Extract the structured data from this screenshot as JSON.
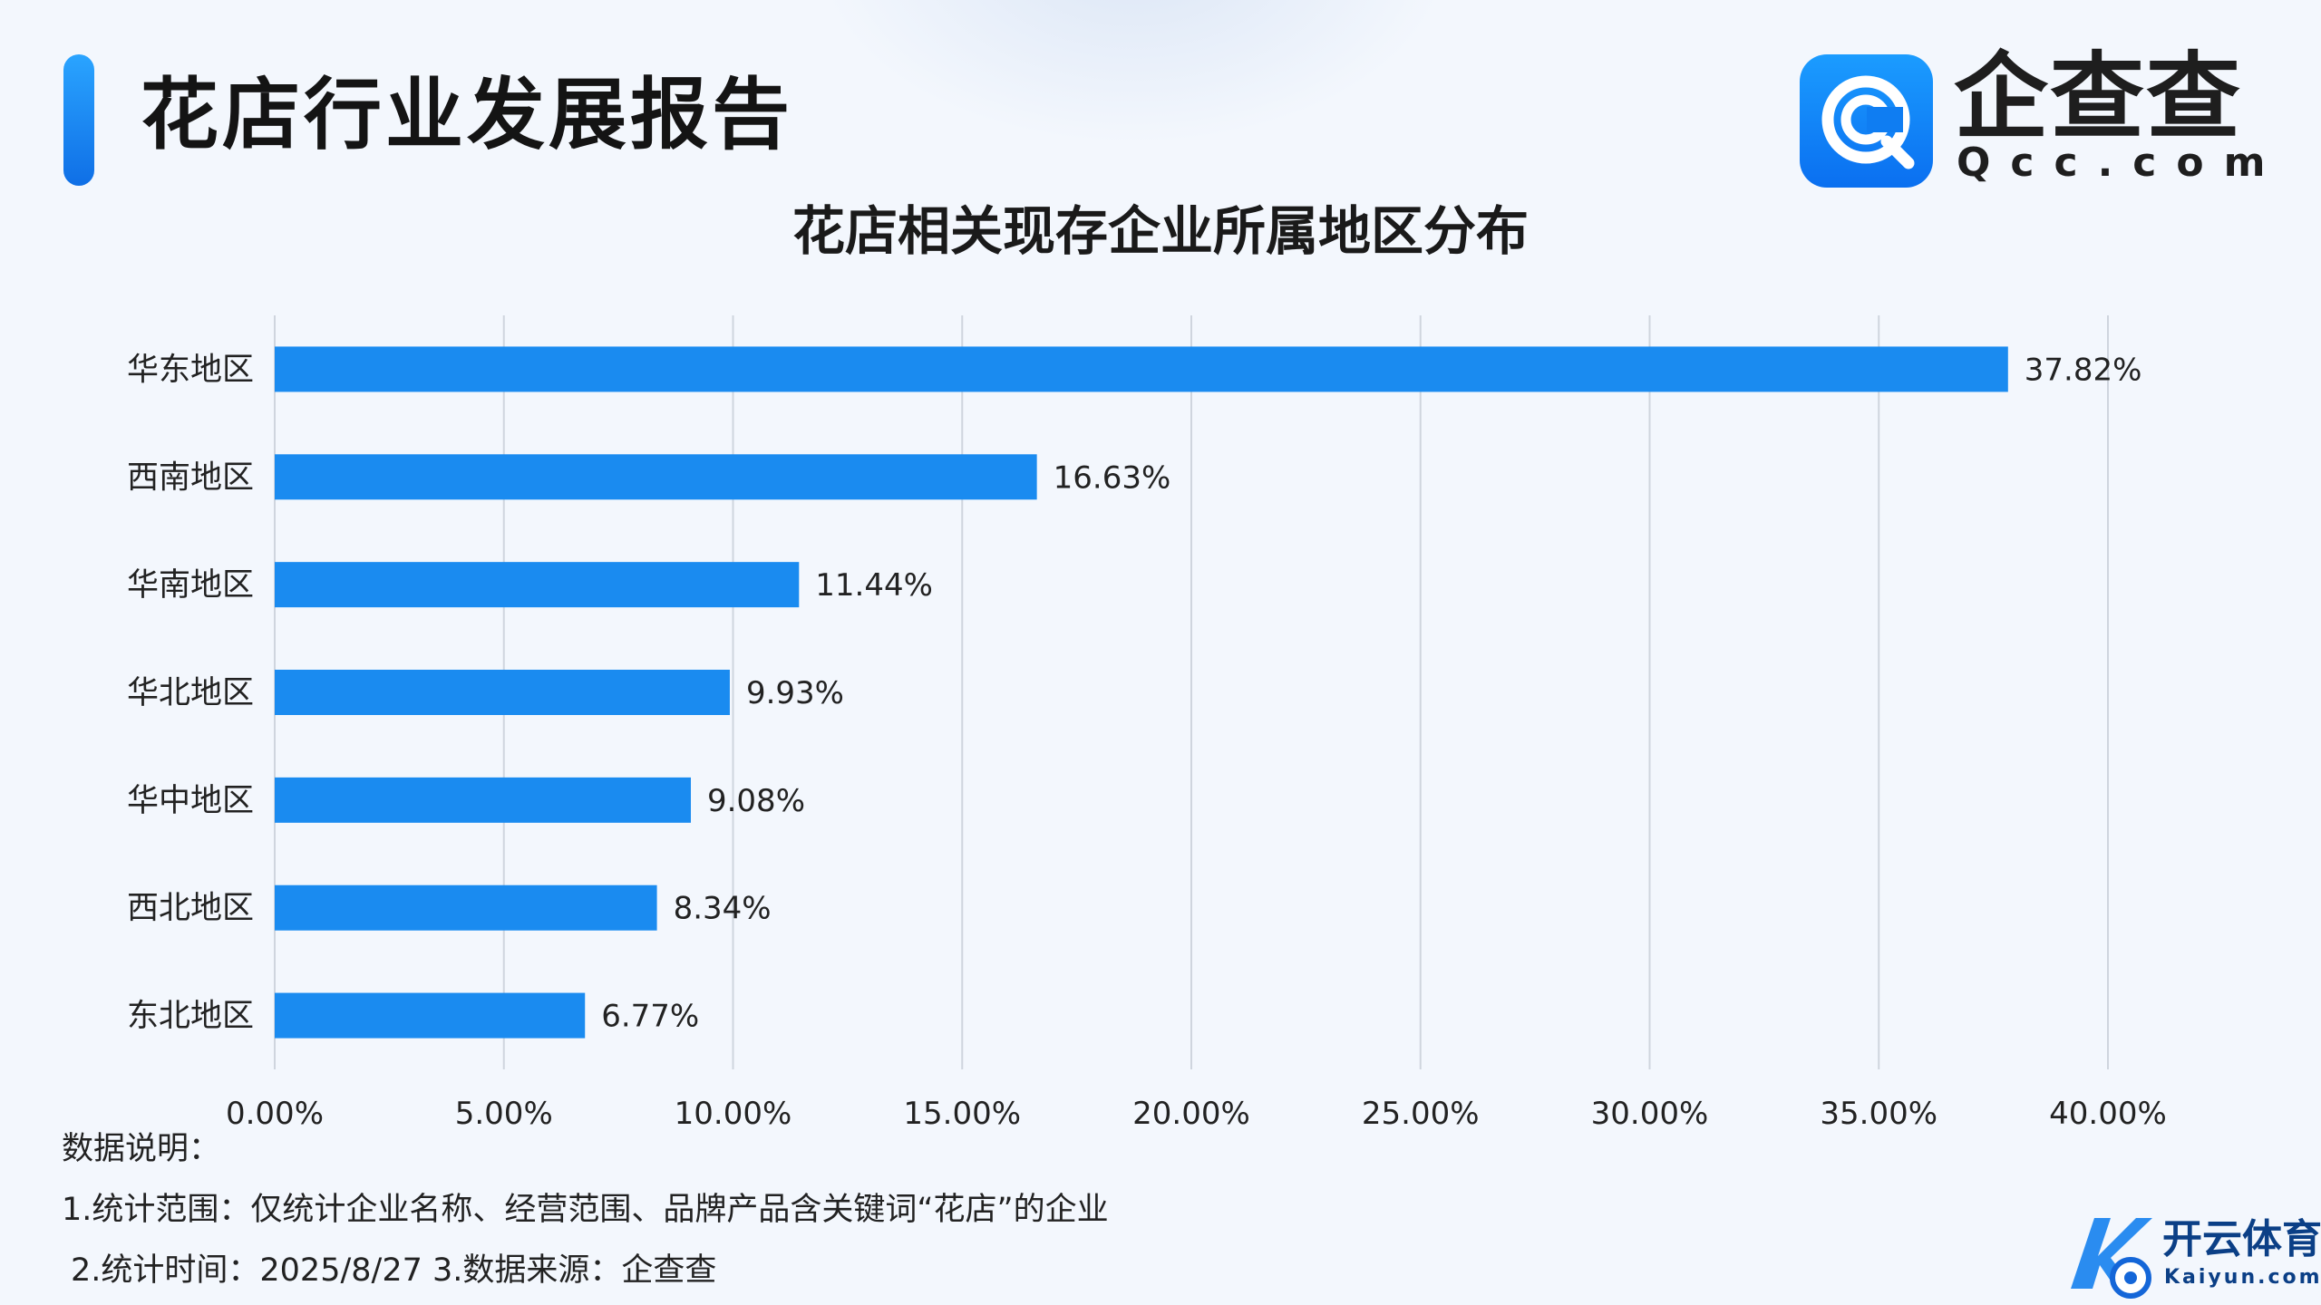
{
  "header": {
    "report_title": "花店行业发展报告",
    "logo": {
      "icon": "qcc-logo-icon",
      "name": "企查查",
      "domain": "Qcc.com"
    }
  },
  "colors": {
    "bar": "#1a8bf0",
    "accent": "#1683f2",
    "grid": "#cfd5de",
    "background": "#f3f7fd"
  },
  "chart_data": {
    "type": "bar",
    "orientation": "horizontal",
    "title": "花店相关现存企业所属地区分布",
    "xlabel": "",
    "ylabel": "",
    "categories": [
      "华东地区",
      "西南地区",
      "华南地区",
      "华北地区",
      "华中地区",
      "西北地区",
      "东北地区"
    ],
    "values": [
      37.82,
      16.63,
      11.44,
      9.93,
      9.08,
      8.34,
      6.77
    ],
    "value_labels": [
      "37.82%",
      "16.63%",
      "11.44%",
      "9.93%",
      "9.08%",
      "8.34%",
      "6.77%"
    ],
    "xlim": [
      0,
      40
    ],
    "x_ticks": [
      0,
      5,
      10,
      15,
      20,
      25,
      30,
      35,
      40
    ],
    "x_tick_labels": [
      "0.00%",
      "5.00%",
      "10.00%",
      "15.00%",
      "20.00%",
      "25.00%",
      "30.00%",
      "35.00%",
      "40.00%"
    ],
    "grid": "vertical",
    "legend": "none"
  },
  "notes": {
    "heading": "数据说明：",
    "line1": "1.统计范围：仅统计企业名称、经营范围、品牌产品含关键词“花店”的企业",
    "line2": "2.统计时间：2025/8/27 3.数据来源：企查查"
  },
  "watermark": {
    "icon": "kaiyun-k-logo-icon",
    "title": "开云体育",
    "subtitle": "Kaiyun.com"
  }
}
